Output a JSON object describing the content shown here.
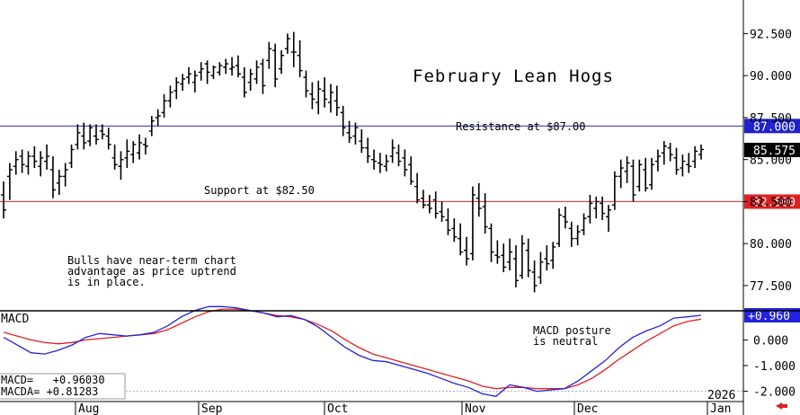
{
  "chart_data": {
    "type": "bar",
    "title": "February Lean Hogs",
    "year_label": "2026",
    "months": [
      "Aug",
      "Sep",
      "Oct",
      "Nov",
      "Dec",
      "Jan"
    ],
    "price_axis": {
      "range": [
        76.0,
        94.5
      ],
      "ticks": [
        "92.500",
        "90.000",
        "87.500",
        "85.000",
        "82.500",
        "80.000",
        "77.500"
      ],
      "tick_values": [
        92.5,
        90.0,
        87.5,
        85.0,
        82.5,
        80.0,
        77.5
      ]
    },
    "last_price": {
      "label": "85.575",
      "value": 85.575
    },
    "resistance": {
      "value": 87.0,
      "label": "87.000",
      "text": "Resistance at $87.00",
      "color": "#2222cc"
    },
    "support": {
      "value": 82.5,
      "label": "82.500",
      "text": "Support at $82.50",
      "color": "#dd2222"
    },
    "annotations": {
      "bulls": [
        "Bulls have near-term chart",
        "advantage as price uptrend",
        "is in place."
      ],
      "macd_note": [
        "MACD posture",
        "is neutral"
      ]
    },
    "macd": {
      "panel_label": "MACD",
      "range": [
        -2.4,
        1.1
      ],
      "ticks": [
        "0.000",
        "-1.000",
        "-2.000"
      ],
      "tick_values": [
        0.0,
        -1.0,
        -2.0
      ],
      "last": {
        "label": "+0.960",
        "value": 0.96
      },
      "readout": [
        "MACD=   +0.96030",
        "MACDA= +0.81283"
      ],
      "macd_color": "#2222dd",
      "signal_color": "#dd2222",
      "macd_line": [
        0.1,
        -0.2,
        -0.5,
        -0.55,
        -0.4,
        -0.2,
        0.1,
        0.25,
        0.2,
        0.15,
        0.2,
        0.3,
        0.55,
        0.9,
        1.15,
        1.3,
        1.3,
        1.25,
        1.15,
        1.05,
        0.9,
        0.95,
        0.8,
        0.5,
        0.1,
        -0.3,
        -0.6,
        -0.8,
        -0.85,
        -1.0,
        -1.15,
        -1.3,
        -1.5,
        -1.7,
        -1.85,
        -2.1,
        -2.2,
        -1.75,
        -1.85,
        -2.0,
        -1.95,
        -1.9,
        -1.6,
        -1.2,
        -0.8,
        -0.3,
        0.1,
        0.35,
        0.55,
        0.85,
        0.9,
        0.96
      ],
      "signal_line": [
        0.3,
        0.15,
        0.0,
        -0.1,
        -0.15,
        -0.1,
        0.0,
        0.05,
        0.1,
        0.15,
        0.2,
        0.25,
        0.4,
        0.65,
        0.9,
        1.1,
        1.2,
        1.2,
        1.15,
        1.05,
        0.95,
        0.9,
        0.8,
        0.6,
        0.35,
        0.0,
        -0.3,
        -0.55,
        -0.7,
        -0.85,
        -1.0,
        -1.15,
        -1.3,
        -1.45,
        -1.6,
        -1.8,
        -1.9,
        -1.85,
        -1.85,
        -1.9,
        -1.9,
        -1.9,
        -1.75,
        -1.5,
        -1.15,
        -0.75,
        -0.4,
        -0.05,
        0.25,
        0.55,
        0.72,
        0.81
      ]
    },
    "ohlc": [
      [
        82.9,
        83.7,
        81.5,
        82.0
      ],
      [
        84.0,
        84.8,
        82.6,
        84.4
      ],
      [
        84.6,
        85.5,
        84.1,
        85.0
      ],
      [
        85.2,
        85.6,
        84.2,
        84.7
      ],
      [
        84.6,
        85.5,
        84.1,
        85.2
      ],
      [
        85.2,
        85.8,
        84.5,
        84.9
      ],
      [
        84.6,
        85.5,
        84.0,
        85.1
      ],
      [
        84.9,
        85.9,
        84.4,
        85.2
      ],
      [
        84.4,
        85.2,
        82.7,
        83.2
      ],
      [
        83.6,
        84.4,
        82.9,
        84.0
      ],
      [
        84.0,
        84.8,
        83.4,
        84.4
      ],
      [
        84.8,
        85.9,
        84.5,
        85.6
      ],
      [
        85.9,
        87.1,
        85.6,
        86.6
      ],
      [
        86.4,
        87.2,
        85.6,
        86.0
      ],
      [
        86.1,
        87.1,
        85.8,
        86.9
      ],
      [
        86.4,
        87.1,
        85.9,
        86.2
      ],
      [
        86.7,
        87.1,
        86.2,
        86.5
      ],
      [
        86.4,
        86.9,
        85.6,
        85.9
      ],
      [
        85.1,
        85.9,
        84.4,
        84.7
      ],
      [
        84.6,
        85.5,
        83.8,
        85.0
      ],
      [
        85.1,
        86.2,
        84.5,
        85.5
      ],
      [
        85.3,
        86.1,
        84.8,
        85.9
      ],
      [
        85.4,
        86.5,
        85.0,
        86.0
      ],
      [
        85.9,
        86.3,
        85.3,
        85.8
      ],
      [
        86.7,
        87.6,
        86.4,
        87.3
      ],
      [
        87.5,
        88.0,
        87.0,
        87.6
      ],
      [
        87.8,
        88.9,
        87.5,
        88.5
      ],
      [
        88.5,
        89.4,
        88.1,
        89.0
      ],
      [
        89.1,
        89.9,
        88.6,
        89.6
      ],
      [
        89.5,
        90.1,
        89.1,
        89.8
      ],
      [
        89.9,
        90.5,
        89.5,
        90.1
      ],
      [
        89.6,
        90.3,
        89.0,
        90.0
      ],
      [
        90.2,
        90.8,
        89.7,
        90.4
      ],
      [
        90.7,
        90.9,
        89.5,
        90.2
      ],
      [
        90.0,
        90.6,
        89.8,
        90.5
      ],
      [
        90.2,
        90.8,
        90.0,
        90.6
      ],
      [
        90.5,
        91.0,
        90.1,
        90.7
      ],
      [
        90.4,
        91.1,
        90.0,
        90.5
      ],
      [
        90.6,
        91.2,
        89.9,
        90.1
      ],
      [
        89.9,
        90.5,
        88.7,
        89.0
      ],
      [
        89.6,
        90.4,
        89.1,
        90.1
      ],
      [
        89.8,
        90.9,
        89.5,
        90.5
      ],
      [
        90.7,
        91.0,
        88.9,
        89.4
      ],
      [
        90.9,
        92.0,
        90.4,
        91.6
      ],
      [
        91.5,
        91.9,
        89.3,
        89.8
      ],
      [
        90.4,
        91.5,
        90.1,
        91.2
      ],
      [
        91.6,
        92.5,
        91.3,
        92.2
      ],
      [
        91.4,
        92.6,
        90.5,
        91.4
      ],
      [
        91.2,
        92.1,
        89.9,
        90.3
      ],
      [
        89.9,
        90.3,
        88.7,
        89.1
      ],
      [
        88.9,
        89.6,
        88.0,
        88.6
      ],
      [
        88.4,
        89.7,
        87.7,
        89.2
      ],
      [
        89.1,
        89.9,
        88.1,
        88.6
      ],
      [
        88.4,
        89.5,
        87.8,
        89.0
      ],
      [
        88.5,
        89.4,
        87.6,
        88.1
      ],
      [
        87.8,
        88.2,
        86.4,
        86.9
      ],
      [
        86.6,
        87.3,
        86.0,
        86.3
      ],
      [
        86.4,
        87.2,
        85.9,
        86.9
      ],
      [
        86.1,
        86.8,
        85.4,
        85.7
      ],
      [
        85.7,
        86.3,
        84.8,
        85.2
      ],
      [
        85.0,
        85.6,
        84.4,
        84.9
      ],
      [
        84.8,
        85.4,
        84.2,
        84.7
      ],
      [
        84.6,
        85.3,
        84.3,
        84.9
      ],
      [
        85.2,
        86.2,
        84.8,
        85.7
      ],
      [
        85.4,
        85.9,
        84.6,
        84.9
      ],
      [
        85.1,
        85.6,
        84.0,
        84.4
      ],
      [
        84.7,
        85.2,
        83.5,
        83.7
      ],
      [
        83.4,
        84.2,
        82.4,
        82.6
      ],
      [
        82.7,
        83.2,
        82.1,
        82.3
      ],
      [
        82.3,
        82.9,
        81.8,
        82.1
      ],
      [
        82.6,
        83.1,
        81.5,
        81.8
      ],
      [
        81.9,
        82.5,
        81.3,
        81.6
      ],
      [
        81.4,
        82.1,
        80.5,
        80.8
      ],
      [
        80.9,
        81.5,
        80.1,
        80.4
      ],
      [
        80.3,
        81.2,
        79.3,
        79.5
      ],
      [
        79.6,
        80.4,
        78.7,
        79.1
      ],
      [
        79.4,
        83.4,
        79.0,
        82.9
      ],
      [
        82.7,
        83.6,
        81.6,
        82.1
      ],
      [
        82.2,
        83.0,
        80.6,
        81.0
      ],
      [
        80.9,
        81.2,
        78.9,
        79.5
      ],
      [
        79.3,
        80.2,
        78.8,
        79.2
      ],
      [
        79.3,
        80.0,
        78.3,
        78.6
      ],
      [
        78.9,
        80.3,
        78.4,
        79.5
      ],
      [
        79.1,
        79.9,
        77.4,
        77.8
      ],
      [
        78.1,
        80.5,
        77.9,
        80.0
      ],
      [
        79.6,
        80.3,
        78.0,
        78.4
      ],
      [
        78.3,
        79.0,
        77.1,
        77.5
      ],
      [
        78.0,
        79.5,
        77.6,
        78.9
      ],
      [
        79.1,
        79.9,
        78.4,
        78.8
      ],
      [
        79.0,
        80.1,
        78.5,
        79.8
      ],
      [
        80.0,
        82.1,
        79.8,
        81.7
      ],
      [
        81.6,
        82.2,
        80.9,
        81.3
      ],
      [
        80.9,
        81.3,
        79.8,
        80.3
      ],
      [
        80.3,
        81.1,
        79.9,
        80.7
      ],
      [
        80.8,
        81.8,
        80.5,
        81.5
      ],
      [
        81.6,
        82.9,
        81.2,
        82.4
      ],
      [
        82.1,
        82.8,
        81.5,
        82.5
      ],
      [
        82.4,
        82.8,
        81.4,
        81.8
      ],
      [
        81.6,
        82.3,
        80.7,
        82.0
      ],
      [
        82.3,
        84.3,
        82.0,
        84.0
      ],
      [
        84.0,
        85.0,
        83.3,
        84.5
      ],
      [
        84.3,
        85.2,
        83.6,
        84.8
      ],
      [
        84.6,
        85.0,
        82.5,
        82.9
      ],
      [
        83.4,
        85.0,
        83.1,
        84.7
      ],
      [
        84.4,
        85.1,
        83.1,
        83.3
      ],
      [
        83.5,
        85.1,
        83.2,
        84.7
      ],
      [
        84.9,
        85.6,
        84.3,
        85.2
      ],
      [
        85.4,
        86.1,
        84.7,
        85.8
      ],
      [
        85.7,
        86.0,
        84.9,
        85.3
      ],
      [
        85.1,
        85.7,
        84.1,
        84.4
      ],
      [
        84.5,
        85.3,
        84.0,
        84.9
      ],
      [
        84.7,
        85.4,
        84.2,
        84.6
      ],
      [
        84.9,
        85.8,
        84.5,
        85.5
      ],
      [
        85.3,
        85.9,
        85.0,
        85.6
      ]
    ]
  }
}
